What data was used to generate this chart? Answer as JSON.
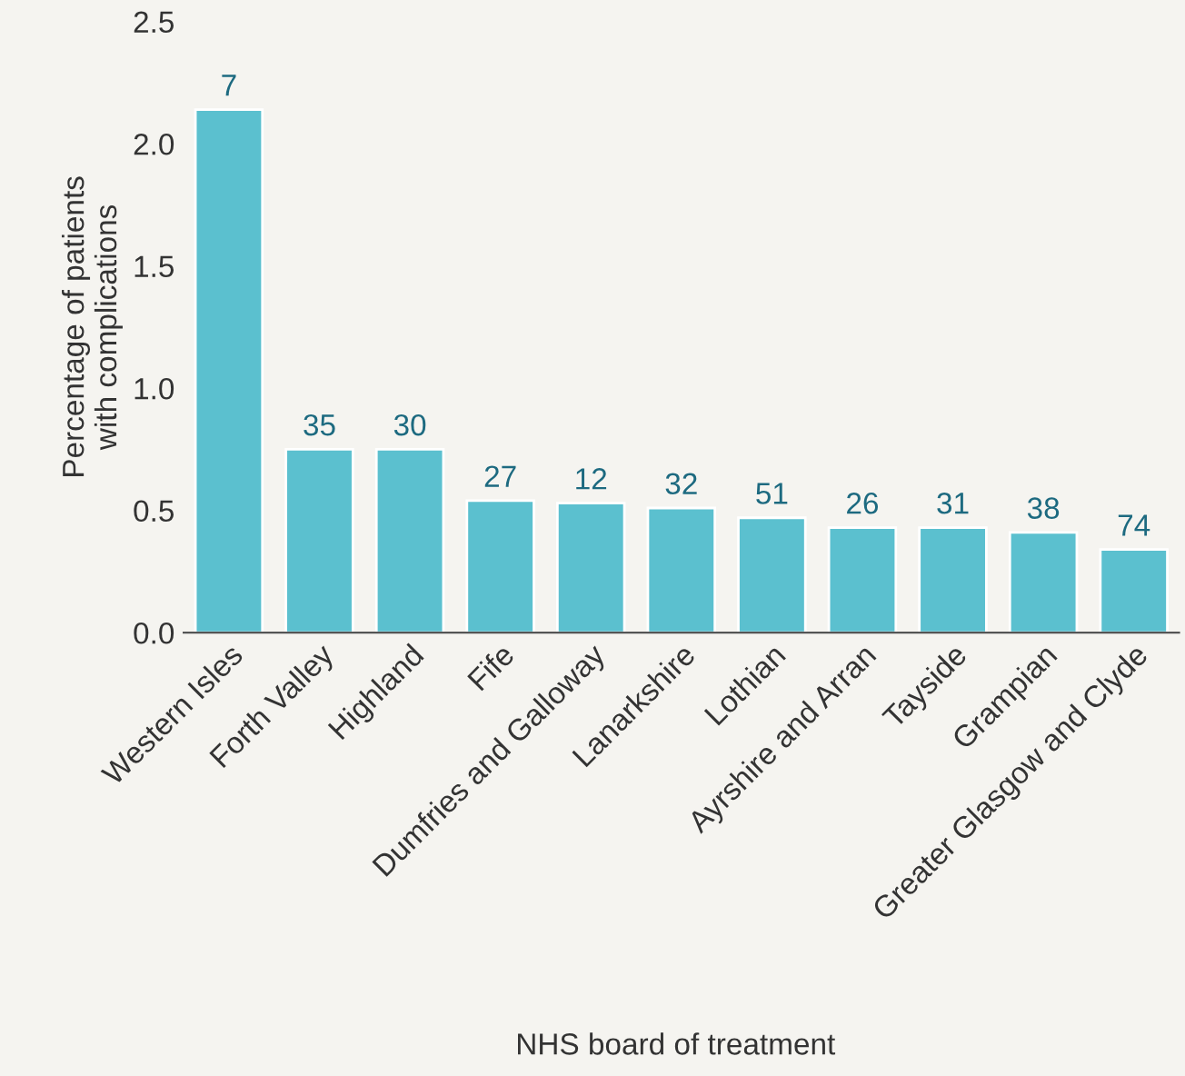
{
  "chart_data": {
    "type": "bar",
    "xlabel": "NHS board of treatment",
    "ylabel": "Percentage of patients\nwith complications",
    "categories": [
      "Western Isles",
      "Forth Valley",
      "Highland",
      "Fife",
      "Dumfries and Galloway",
      "Lanarkshire",
      "Lothian",
      "Ayrshire and Arran",
      "Tayside",
      "Grampian",
      "Greater Glasgow and Clyde"
    ],
    "values": [
      2.14,
      0.75,
      0.75,
      0.54,
      0.53,
      0.51,
      0.47,
      0.43,
      0.43,
      0.41,
      0.34
    ],
    "annotations": [
      {
        "text": "7",
        "x": "Western Isles",
        "y": 2.14
      },
      {
        "text": "35",
        "x": "Forth Valley",
        "y": 0.75
      },
      {
        "text": "30",
        "x": "Highland",
        "y": 0.75
      },
      {
        "text": "27",
        "x": "Fife",
        "y": 0.54
      },
      {
        "text": "12",
        "x": "Dumfries and Galloway",
        "y": 0.53
      },
      {
        "text": "32",
        "x": "Lanarkshire",
        "y": 0.51
      },
      {
        "text": "51",
        "x": "Lothian",
        "y": 0.47
      },
      {
        "text": "26",
        "x": "Ayrshire and Arran",
        "y": 0.43
      },
      {
        "text": "31",
        "x": "Tayside",
        "y": 0.43
      },
      {
        "text": "38",
        "x": "Grampian",
        "y": 0.41
      },
      {
        "text": "74",
        "x": "Greater Glasgow and Clyde",
        "y": 0.34
      }
    ],
    "color": "#5bc0cf",
    "ylim": [
      0,
      2.5
    ],
    "yticks": [
      {
        "value": 0,
        "label": "0.0"
      },
      {
        "value": 0.5,
        "label": "0.5"
      },
      {
        "value": 1,
        "label": "1.0"
      },
      {
        "value": 1.5,
        "label": "1.5"
      },
      {
        "value": 2,
        "label": "2.0"
      },
      {
        "value": 2.5,
        "label": "2.5"
      }
    ],
    "grid": false,
    "legend": false
  }
}
